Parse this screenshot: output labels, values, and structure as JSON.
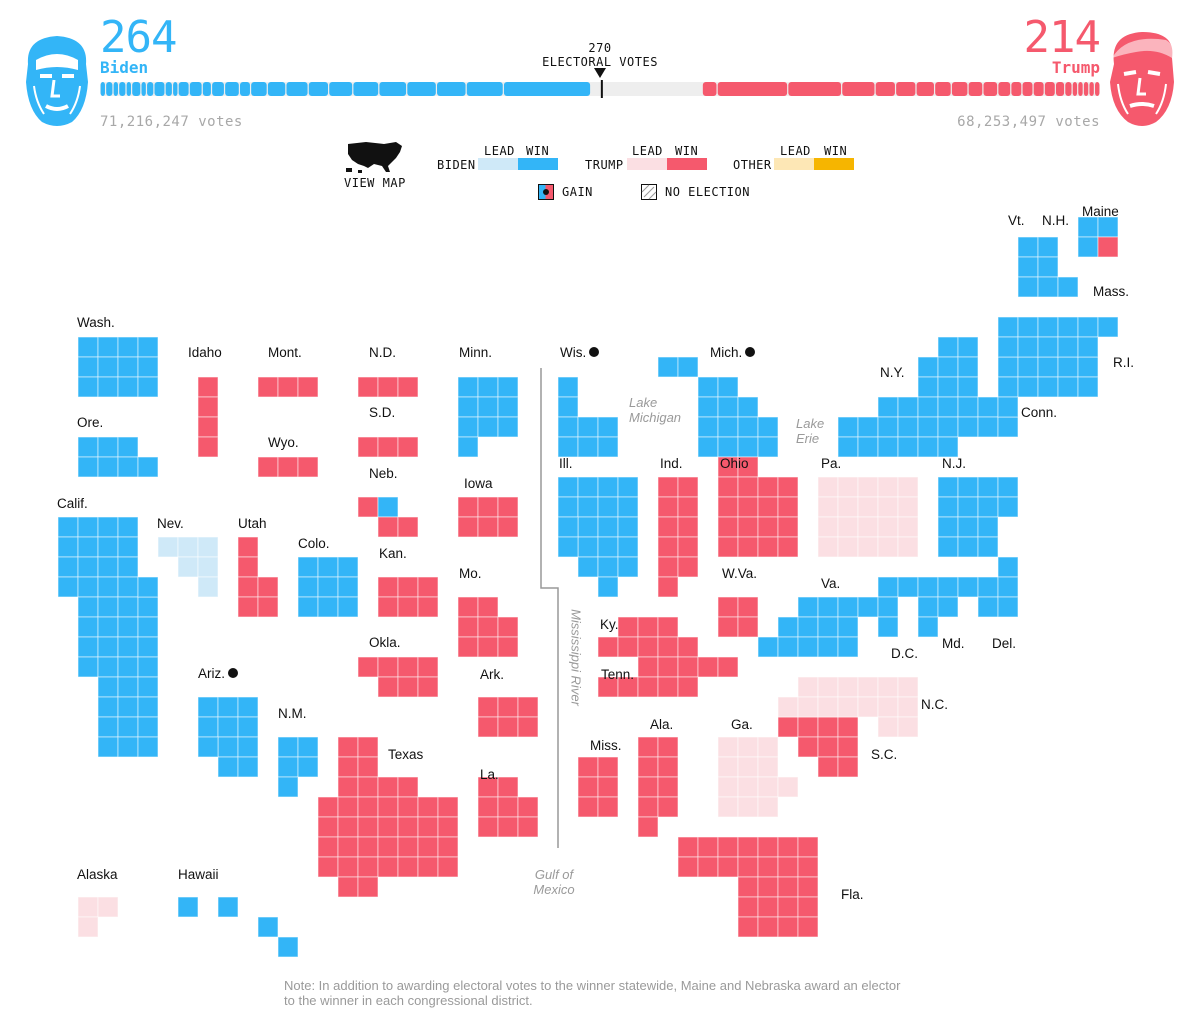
{
  "header": {
    "threshold_number": "270",
    "threshold_label": "ELECTORAL VOTES",
    "biden": {
      "electoral": "264",
      "name": "Biden",
      "popular": "71,216,247 votes"
    },
    "trump": {
      "electoral": "214",
      "name": "Trump",
      "popular": "68,253,497 votes"
    }
  },
  "electoral_bar": {
    "total": 538,
    "threshold": 270,
    "biden_won": 264,
    "trump_won": 214
  },
  "legend": {
    "view_map": "VIEW MAP",
    "lead": "LEAD",
    "win": "WIN",
    "biden": "BIDEN",
    "trump": "TRUMP",
    "other": "OTHER",
    "gain": "GAIN",
    "no_election": "NO ELECTION"
  },
  "colors": {
    "biden_win": "#33b5f7",
    "biden_lead": "#cfe9f8",
    "trump_win": "#f5596d",
    "trump_lead": "#fbdfe3",
    "other_lead": "#fde7b5",
    "other_win": "#f6b500",
    "pending": "#eeeeee"
  },
  "water_labels": {
    "lake_michigan": [
      "Lake",
      "Michigan"
    ],
    "lake_erie": [
      "Lake",
      "Erie"
    ],
    "mississippi": "Mississippi River",
    "gulf": [
      "Gulf of",
      "Mexico"
    ]
  },
  "note": "Note: In addition to awarding electoral votes to the winner statewide, Maine and Nebraska award an elector to the winner in each congressional district.",
  "states": [
    {
      "label": "Wash.",
      "votes": 12,
      "status": "biden_win",
      "gain": false
    },
    {
      "label": "Ore.",
      "votes": 7,
      "status": "biden_win",
      "gain": false
    },
    {
      "label": "Calif.",
      "votes": 55,
      "status": "biden_win",
      "gain": false
    },
    {
      "label": "Idaho",
      "votes": 4,
      "status": "trump_win",
      "gain": false
    },
    {
      "label": "Nev.",
      "votes": 6,
      "status": "biden_lead",
      "gain": false
    },
    {
      "label": "Utah",
      "votes": 6,
      "status": "trump_win",
      "gain": false
    },
    {
      "label": "Ariz.",
      "votes": 11,
      "status": "biden_win",
      "gain": true
    },
    {
      "label": "Mont.",
      "votes": 3,
      "status": "trump_win",
      "gain": false
    },
    {
      "label": "Wyo.",
      "votes": 3,
      "status": "trump_win",
      "gain": false
    },
    {
      "label": "Colo.",
      "votes": 9,
      "status": "biden_win",
      "gain": false
    },
    {
      "label": "N.M.",
      "votes": 5,
      "status": "biden_win",
      "gain": false
    },
    {
      "label": "N.D.",
      "votes": 3,
      "status": "trump_win",
      "gain": false
    },
    {
      "label": "S.D.",
      "votes": 3,
      "status": "trump_win",
      "gain": false
    },
    {
      "label": "Neb.",
      "votes": 5,
      "status": "trump_win",
      "gain": false
    },
    {
      "label": "Kan.",
      "votes": 6,
      "status": "trump_win",
      "gain": false
    },
    {
      "label": "Okla.",
      "votes": 7,
      "status": "trump_win",
      "gain": false
    },
    {
      "label": "Texas",
      "votes": 38,
      "status": "trump_win",
      "gain": false
    },
    {
      "label": "Minn.",
      "votes": 10,
      "status": "biden_win",
      "gain": false
    },
    {
      "label": "Iowa",
      "votes": 6,
      "status": "trump_win",
      "gain": false
    },
    {
      "label": "Mo.",
      "votes": 10,
      "status": "trump_win",
      "gain": false
    },
    {
      "label": "Ark.",
      "votes": 6,
      "status": "trump_win",
      "gain": false
    },
    {
      "label": "La.",
      "votes": 8,
      "status": "trump_win",
      "gain": false
    },
    {
      "label": "Wis.",
      "votes": 10,
      "status": "biden_win",
      "gain": true
    },
    {
      "label": "Mich.",
      "votes": 16,
      "status": "biden_win",
      "gain": true
    },
    {
      "label": "Ill.",
      "votes": 20,
      "status": "biden_win",
      "gain": false
    },
    {
      "label": "Ind.",
      "votes": 11,
      "status": "trump_win",
      "gain": false
    },
    {
      "label": "Ohio",
      "votes": 18,
      "status": "trump_win",
      "gain": false
    },
    {
      "label": "Ky.",
      "votes": 8,
      "status": "trump_win",
      "gain": false
    },
    {
      "label": "Tenn.",
      "votes": 11,
      "status": "trump_win",
      "gain": false
    },
    {
      "label": "Miss.",
      "votes": 6,
      "status": "trump_win",
      "gain": false
    },
    {
      "label": "Ala.",
      "votes": 9,
      "status": "trump_win",
      "gain": false
    },
    {
      "label": "Ga.",
      "votes": 16,
      "status": "trump_lead",
      "gain": false
    },
    {
      "label": "Fla.",
      "votes": 29,
      "status": "trump_win",
      "gain": false
    },
    {
      "label": "S.C.",
      "votes": 9,
      "status": "trump_win",
      "gain": false
    },
    {
      "label": "N.C.",
      "votes": 15,
      "status": "trump_lead",
      "gain": false
    },
    {
      "label": "Va.",
      "votes": 13,
      "status": "biden_win",
      "gain": false
    },
    {
      "label": "W.Va.",
      "votes": 5,
      "status": "trump_win",
      "gain": false
    },
    {
      "label": "Pa.",
      "votes": 20,
      "status": "trump_lead",
      "gain": false
    },
    {
      "label": "N.Y.",
      "votes": 29,
      "status": "biden_win",
      "gain": false
    },
    {
      "label": "N.J.",
      "votes": 14,
      "status": "biden_win",
      "gain": false
    },
    {
      "label": "Md.",
      "votes": 10,
      "status": "biden_win",
      "gain": false
    },
    {
      "label": "Del.",
      "votes": 3,
      "status": "biden_win",
      "gain": false
    },
    {
      "label": "D.C.",
      "votes": 3,
      "status": "biden_win",
      "gain": false
    },
    {
      "label": "Conn.",
      "votes": 7,
      "status": "biden_win",
      "gain": false
    },
    {
      "label": "R.I.",
      "votes": 4,
      "status": "biden_win",
      "gain": false
    },
    {
      "label": "Mass.",
      "votes": 11,
      "status": "biden_win",
      "gain": false
    },
    {
      "label": "Vt.",
      "votes": 3,
      "status": "biden_win",
      "gain": false
    },
    {
      "label": "N.H.",
      "votes": 4,
      "status": "biden_win",
      "gain": false
    },
    {
      "label": "Maine",
      "votes": 4,
      "status": "biden_win",
      "gain": false
    },
    {
      "label": "Alaska",
      "votes": 3,
      "status": "trump_lead",
      "gain": false
    },
    {
      "label": "Hawaii",
      "votes": 4,
      "status": "biden_win",
      "gain": false
    }
  ]
}
